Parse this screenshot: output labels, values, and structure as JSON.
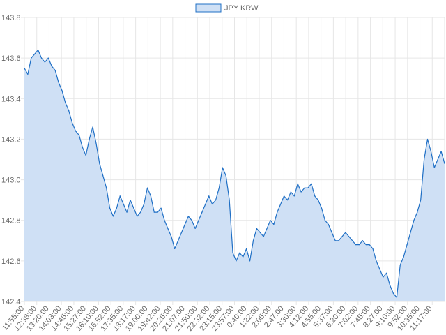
{
  "chart_data": {
    "type": "area",
    "title": "",
    "xlabel": "",
    "ylabel": "",
    "legend": {
      "position": "top",
      "entries": [
        "JPY KRW"
      ]
    },
    "grid": true,
    "ylim": [
      142.4,
      143.8
    ],
    "y_ticks": [
      "142.4",
      "142.6",
      "142.8",
      "143.0",
      "143.2",
      "143.4",
      "143.6",
      "143.8"
    ],
    "x_ticks": [
      "11:55:00",
      "12:38:00",
      "13:20:00",
      "14:03:00",
      "14:45:00",
      "15:27:00",
      "16:10:00",
      "16:52:00",
      "17:35:00",
      "18:17:00",
      "19:00:00",
      "19:42:00",
      "20:25:00",
      "21:07:00",
      "21:50:00",
      "22:32:00",
      "23:15:00",
      "23:57:00",
      "0:40:00",
      "1:22:00",
      "2:05:00",
      "2:47:00",
      "3:30:00",
      "4:12:00",
      "4:55:00",
      "5:37:00",
      "6:20:00",
      "7:02:00",
      "7:45:00",
      "8:27:00",
      "9:10:00",
      "9:52:00",
      "10:35:00",
      "11:17:00"
    ],
    "series": [
      {
        "name": "JPY KRW",
        "color": "#1f6fc5",
        "fill": "#cfe0f5",
        "values": [
          143.55,
          143.52,
          143.6,
          143.62,
          143.64,
          143.6,
          143.58,
          143.6,
          143.56,
          143.54,
          143.48,
          143.44,
          143.38,
          143.34,
          143.28,
          143.24,
          143.22,
          143.16,
          143.12,
          143.2,
          143.26,
          143.18,
          143.08,
          143.02,
          142.96,
          142.86,
          142.82,
          142.86,
          142.92,
          142.88,
          142.84,
          142.9,
          142.86,
          142.82,
          142.84,
          142.88,
          142.96,
          142.92,
          142.84,
          142.84,
          142.86,
          142.8,
          142.76,
          142.72,
          142.66,
          142.7,
          142.74,
          142.78,
          142.82,
          142.8,
          142.76,
          142.8,
          142.84,
          142.88,
          142.92,
          142.88,
          142.9,
          142.96,
          143.06,
          143.02,
          142.9,
          142.64,
          142.6,
          142.64,
          142.62,
          142.66,
          142.6,
          142.7,
          142.76,
          142.74,
          142.72,
          142.76,
          142.8,
          142.78,
          142.84,
          142.88,
          142.92,
          142.9,
          142.94,
          142.92,
          142.98,
          142.94,
          142.96,
          142.96,
          142.98,
          142.92,
          142.9,
          142.86,
          142.8,
          142.78,
          142.74,
          142.7,
          142.7,
          142.72,
          142.74,
          142.72,
          142.7,
          142.68,
          142.68,
          142.7,
          142.68,
          142.68,
          142.66,
          142.6,
          142.56,
          142.52,
          142.54,
          142.48,
          142.44,
          142.42,
          142.58,
          142.62,
          142.68,
          142.74,
          142.8,
          142.84,
          142.9,
          143.1,
          143.2,
          143.14,
          143.06,
          143.1,
          143.14,
          143.08
        ]
      }
    ]
  }
}
